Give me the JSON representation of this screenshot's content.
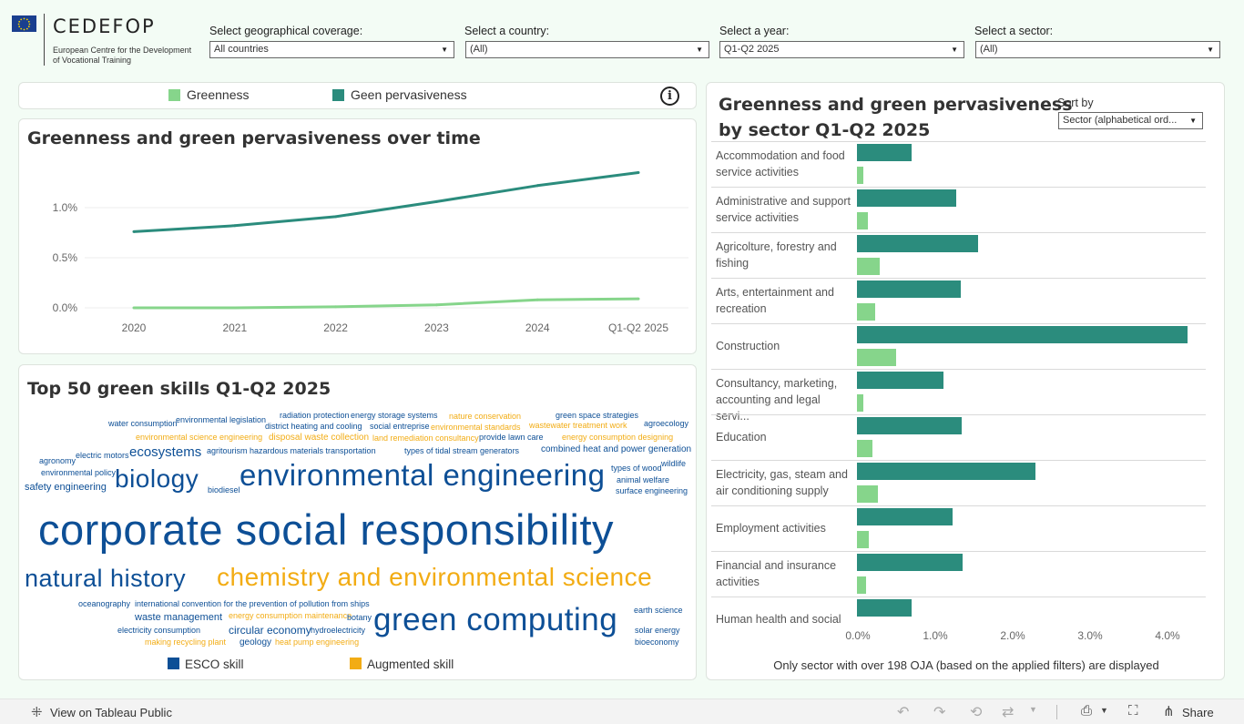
{
  "header": {
    "logo_name": "CEDEFOP",
    "logo_sub": "European Centre for the Development of Vocational Training",
    "filters": [
      {
        "label": "Select geographical coverage:",
        "value": "All countries"
      },
      {
        "label": "Select a country:",
        "value": "(All)"
      },
      {
        "label": "Select a year:",
        "value": "Q1-Q2 2025"
      },
      {
        "label": "Select a sector:",
        "value": "(All)"
      }
    ]
  },
  "legend": {
    "greenness": "Greenness",
    "pervasiveness": "Geen pervasiveness",
    "info_icon": "info-icon",
    "colors": {
      "greenness": "#86d58b",
      "pervasiveness": "#2b8c7d"
    }
  },
  "line_chart": {
    "title": "Greenness and green pervasiveness over time",
    "chart_data": {
      "type": "line",
      "categories": [
        "2020",
        "2021",
        "2022",
        "2023",
        "2024",
        "Q1-Q2 2025"
      ],
      "series": [
        {
          "name": "Geen pervasiveness",
          "values": [
            0.76,
            0.82,
            0.91,
            1.06,
            1.22,
            1.35
          ]
        },
        {
          "name": "Greenness",
          "values": [
            0.0,
            0.0,
            0.01,
            0.03,
            0.08,
            0.09
          ]
        }
      ],
      "yticks": [
        "1.0%",
        "0.5%",
        "0.0%"
      ],
      "ylim": [
        -0.1,
        1.6
      ]
    }
  },
  "skills": {
    "title": "Top 50 green skills Q1-Q2 2025",
    "legend_esco": "ESCO skill",
    "legend_aug": "Augmented skill",
    "colors": {
      "esco": "#0d4f96",
      "aug": "#f2ac14"
    },
    "words": [
      {
        "t": "radiation protection",
        "k": "e"
      },
      {
        "t": "energy storage systems",
        "k": "e"
      },
      {
        "t": "nature conservation",
        "k": "a"
      },
      {
        "t": "green space strategies",
        "k": "e"
      },
      {
        "t": "water consumption",
        "k": "e"
      },
      {
        "t": "environmental legislation",
        "k": "e"
      },
      {
        "t": "district heating and cooling",
        "k": "e"
      },
      {
        "t": "social entreprise",
        "k": "e"
      },
      {
        "t": "environmental standards",
        "k": "a"
      },
      {
        "t": "wastewater treatment work",
        "k": "a"
      },
      {
        "t": "agroecology",
        "k": "e"
      },
      {
        "t": "environmental science engineering",
        "k": "a"
      },
      {
        "t": "disposal waste collection",
        "k": "a"
      },
      {
        "t": "land remediation consultancy",
        "k": "a"
      },
      {
        "t": "provide lawn care",
        "k": "e"
      },
      {
        "t": "energy consumption designing",
        "k": "a"
      },
      {
        "t": "electric motors",
        "k": "e"
      },
      {
        "t": "ecosystems",
        "k": "e"
      },
      {
        "t": "agritourism",
        "k": "e"
      },
      {
        "t": "hazardous materials transportation",
        "k": "e"
      },
      {
        "t": "types of tidal stream generators",
        "k": "e"
      },
      {
        "t": "combined heat and power generation",
        "k": "e"
      },
      {
        "t": "agronomy",
        "k": "e"
      },
      {
        "t": "wildlife",
        "k": "e"
      },
      {
        "t": "types of wood",
        "k": "e"
      },
      {
        "t": "environmental policy",
        "k": "e"
      },
      {
        "t": "biology",
        "k": "e"
      },
      {
        "t": "environmental engineering",
        "k": "e"
      },
      {
        "t": "animal welfare",
        "k": "e"
      },
      {
        "t": "safety engineering",
        "k": "e"
      },
      {
        "t": "biodiesel",
        "k": "e"
      },
      {
        "t": "surface engineering",
        "k": "e"
      },
      {
        "t": "corporate social responsibility",
        "k": "e"
      },
      {
        "t": "natural history",
        "k": "e"
      },
      {
        "t": "chemistry and environmental science",
        "k": "a"
      },
      {
        "t": "oceanography",
        "k": "e"
      },
      {
        "t": "international convention for the prevention of pollution from ships",
        "k": "e"
      },
      {
        "t": "earth science",
        "k": "e"
      },
      {
        "t": "waste management",
        "k": "e"
      },
      {
        "t": "energy consumption maintenance",
        "k": "a"
      },
      {
        "t": "botany",
        "k": "e"
      },
      {
        "t": "green computing",
        "k": "e"
      },
      {
        "t": "electricity consumption",
        "k": "e"
      },
      {
        "t": "circular economy",
        "k": "e"
      },
      {
        "t": "hydroelectricity",
        "k": "e"
      },
      {
        "t": "solar energy",
        "k": "e"
      },
      {
        "t": "making recycling plant",
        "k": "a"
      },
      {
        "t": "geology",
        "k": "e"
      },
      {
        "t": "heat pump engineering",
        "k": "a"
      },
      {
        "t": "bioeconomy",
        "k": "e"
      }
    ]
  },
  "sector_chart": {
    "title_line1": "Greenness and green pervasiveness",
    "title_line2": "by sector Q1-Q2 2025",
    "sort_label": "Sort by",
    "sort_value": "Sector (alphabetical ord...",
    "footnote": "Only sector with over 198 OJA (based on the applied filters) are displayed",
    "chart_data": {
      "type": "bar",
      "categories": [
        "Accommodation and food service activities",
        "Administrative and support service activities",
        "Agricolture, forestry and fishing",
        "Arts, entertainment and recreation",
        "Construction",
        "Consultancy, marketing, accounting and legal servi...",
        "Education",
        "Electricity, gas, steam and air conditioning supply",
        "Employment activities",
        "Financial and insurance activities",
        "Human health and social"
      ],
      "series": [
        {
          "name": "Geen pervasiveness",
          "values": [
            0.7,
            1.28,
            1.57,
            1.34,
            4.27,
            1.12,
            1.35,
            2.31,
            1.23,
            1.37,
            0.71
          ]
        },
        {
          "name": "Greenness",
          "values": [
            0.08,
            0.14,
            0.29,
            0.24,
            0.51,
            0.08,
            0.2,
            0.27,
            0.15,
            0.12,
            0.0
          ]
        }
      ],
      "xticks": [
        "0.0%",
        "1.0%",
        "2.0%",
        "3.0%",
        "4.0%"
      ],
      "xlim": [
        0,
        4.3
      ]
    }
  },
  "toolbar": {
    "view_label": "View on Tableau Public",
    "share_label": "Share"
  }
}
